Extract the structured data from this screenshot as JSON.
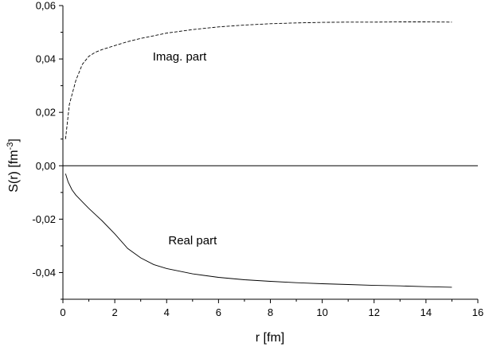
{
  "chart_data": {
    "type": "line",
    "title": "",
    "xlabel": "r [fm]",
    "ylabel": "S(r) [fm",
    "ylabel_superscript": "-3",
    "ylabel_close": "]",
    "xlim": [
      0,
      16
    ],
    "ylim": [
      -0.05,
      0.06
    ],
    "x_ticks": [
      0,
      2,
      4,
      6,
      8,
      10,
      12,
      14,
      16
    ],
    "x_tick_labels": [
      "0",
      "2",
      "4",
      "6",
      "8",
      "10",
      "12",
      "14",
      "16"
    ],
    "y_ticks": [
      -0.04,
      -0.02,
      0.0,
      0.02,
      0.04,
      0.06
    ],
    "y_tick_labels": [
      "-0,04",
      "-0,02",
      "0,00",
      "0,02",
      "0,04",
      "0,06"
    ],
    "grid": false,
    "zero_line": true,
    "series": [
      {
        "name": "Imag. part",
        "style": "dashed",
        "x": [
          0.1,
          0.25,
          0.5,
          0.75,
          1,
          1.25,
          1.5,
          2,
          2.5,
          3,
          4,
          5,
          6,
          7,
          8,
          9,
          10,
          11,
          12,
          13,
          14,
          15
        ],
        "y": [
          0.01,
          0.023,
          0.032,
          0.038,
          0.041,
          0.0425,
          0.0435,
          0.045,
          0.0465,
          0.0477,
          0.0497,
          0.051,
          0.052,
          0.0527,
          0.0532,
          0.0535,
          0.0537,
          0.0538,
          0.0538,
          0.0539,
          0.0539,
          0.0538
        ]
      },
      {
        "name": "Real part",
        "style": "solid",
        "x": [
          0.1,
          0.2,
          0.35,
          0.5,
          0.75,
          1,
          1.5,
          2,
          2.5,
          3,
          3.5,
          4,
          5,
          6,
          7,
          8,
          9,
          10,
          11,
          12,
          13,
          14,
          15
        ],
        "y": [
          -0.003,
          -0.006,
          -0.009,
          -0.011,
          -0.0135,
          -0.016,
          -0.0205,
          -0.0255,
          -0.031,
          -0.0345,
          -0.037,
          -0.0385,
          -0.0405,
          -0.0418,
          -0.0427,
          -0.0433,
          -0.0438,
          -0.0442,
          -0.0445,
          -0.0448,
          -0.045,
          -0.0453,
          -0.0455
        ]
      }
    ],
    "annotations": [
      {
        "text": "Imag. part",
        "x": 4.5,
        "y": 0.0395
      },
      {
        "text": "Real part",
        "x": 5.0,
        "y": -0.0295
      }
    ]
  }
}
